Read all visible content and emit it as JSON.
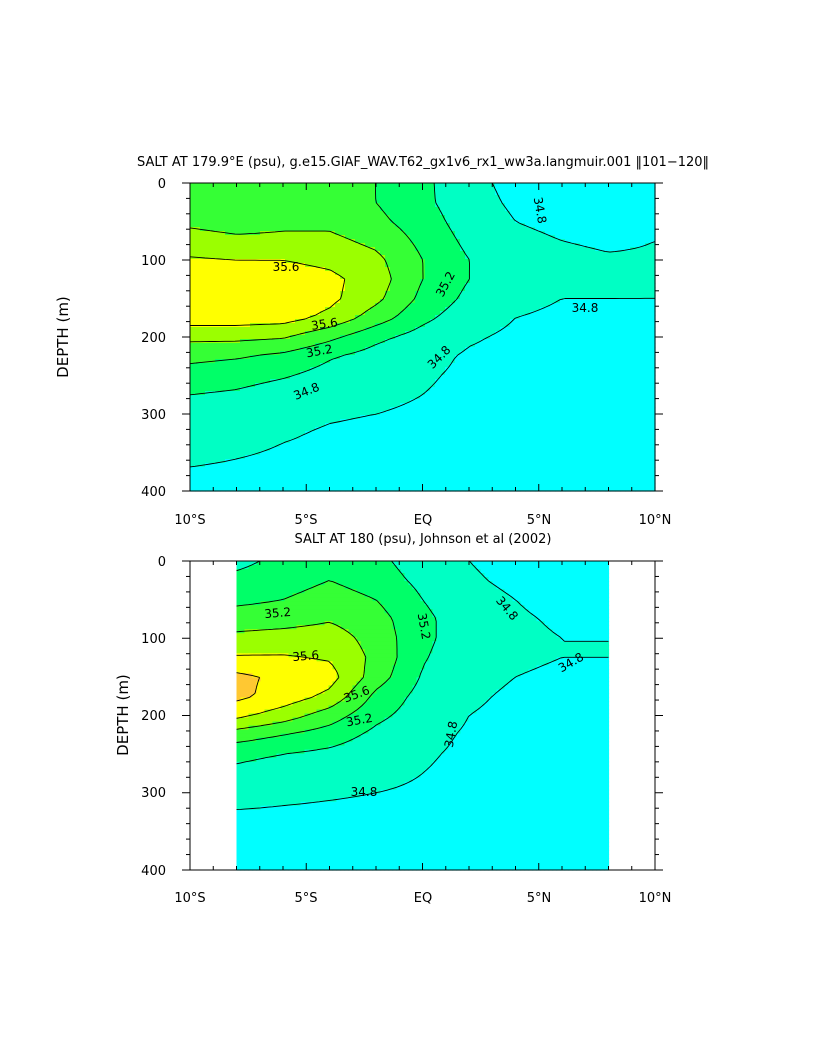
{
  "figure": {
    "colors": {
      "cyan": "#00FFFF",
      "aqua_green": "#00FFC4",
      "teal_green": "#00FF96",
      "green_mid": "#00FF68",
      "green": "#35FF35",
      "lime": "#9BFF00",
      "yellow": "#FFFF00",
      "orange": "#FFC832",
      "lines": "#000000",
      "background": "#FFFFFF"
    }
  },
  "chart_data": [
    {
      "type": "heatmap",
      "title": "SALT AT 179.9°E (psu), g.e15.GIAF_WAV.T62_gx1v6_rx1_ww3a.langmuir.001 ‖101−120‖",
      "xlabel": "",
      "ylabel": "DEPTH (m)",
      "xlim": [
        -10,
        10
      ],
      "ylim": [
        400,
        0
      ],
      "x_ticks": [
        -10,
        -5,
        0,
        5,
        10
      ],
      "x_tick_labels": [
        "10°S",
        "5°S",
        "EQ",
        "5°N",
        "10°N"
      ],
      "y_ticks": [
        0,
        100,
        200,
        300,
        400
      ],
      "y_tick_labels": [
        "0",
        "100",
        "200",
        "300",
        "400"
      ],
      "grid": false,
      "data_extent_lat": [
        -10,
        10
      ],
      "contour_labels": [
        "35.6",
        "35.6",
        "35.2",
        "35.2",
        "34.8",
        "34.8",
        "34.8",
        "34.8"
      ],
      "contour_levels": [
        34.6,
        34.8,
        35.0,
        35.2,
        35.4,
        35.6
      ],
      "salinity_field": {
        "lat": [
          -10,
          -8,
          -6,
          -4,
          -2,
          0,
          2,
          4,
          6,
          8,
          10
        ],
        "depth": [
          0,
          25,
          50,
          75,
          100,
          125,
          150,
          175,
          200,
          225,
          250,
          275,
          300,
          325,
          350,
          375,
          400
        ],
        "values": [
          [
            35.3,
            35.3,
            35.3,
            35.25,
            35.2,
            35.05,
            34.85,
            34.75,
            34.7,
            34.7,
            34.7
          ],
          [
            35.3,
            35.3,
            35.3,
            35.3,
            35.2,
            35.05,
            34.87,
            34.77,
            34.72,
            34.7,
            34.7
          ],
          [
            35.35,
            35.3,
            35.35,
            35.35,
            35.25,
            35.1,
            34.9,
            34.8,
            34.75,
            34.72,
            34.75
          ],
          [
            35.5,
            35.45,
            35.45,
            35.45,
            35.35,
            35.15,
            34.95,
            34.85,
            34.8,
            34.77,
            34.8
          ],
          [
            35.62,
            35.6,
            35.6,
            35.55,
            35.45,
            35.2,
            35.0,
            34.92,
            34.85,
            34.82,
            34.82
          ],
          [
            35.72,
            35.72,
            35.7,
            35.65,
            35.5,
            35.2,
            35.0,
            34.88,
            34.82,
            34.82,
            34.82
          ],
          [
            35.72,
            35.72,
            35.72,
            35.65,
            35.45,
            35.15,
            34.95,
            34.83,
            34.8,
            34.8,
            34.8
          ],
          [
            35.7,
            35.7,
            35.68,
            35.55,
            35.3,
            35.05,
            34.88,
            34.8,
            34.78,
            34.78,
            34.77
          ],
          [
            35.45,
            35.45,
            35.42,
            35.25,
            35.05,
            34.92,
            34.82,
            34.77,
            34.75,
            34.74,
            34.75
          ],
          [
            35.25,
            35.22,
            35.15,
            35.02,
            34.92,
            34.85,
            34.78,
            34.75,
            34.72,
            34.72,
            34.73
          ],
          [
            35.12,
            35.08,
            35.02,
            34.93,
            34.86,
            34.82,
            34.77,
            34.74,
            34.72,
            34.72,
            34.72
          ],
          [
            35.0,
            34.97,
            34.9,
            34.85,
            34.83,
            34.8,
            34.76,
            34.73,
            34.72,
            34.71,
            34.65
          ],
          [
            34.92,
            34.88,
            34.83,
            34.81,
            34.8,
            34.78,
            34.75,
            34.73,
            34.72,
            34.71,
            34.68
          ],
          [
            34.87,
            34.84,
            34.81,
            34.79,
            34.78,
            34.77,
            34.74,
            34.72,
            34.71,
            34.71,
            34.7
          ],
          [
            34.83,
            34.81,
            34.79,
            34.78,
            34.77,
            34.76,
            34.74,
            34.72,
            34.71,
            34.71,
            34.71
          ],
          [
            34.79,
            34.78,
            34.77,
            34.76,
            34.76,
            34.75,
            34.73,
            34.72,
            34.71,
            34.71,
            34.71
          ],
          [
            34.77,
            34.76,
            34.76,
            34.75,
            34.75,
            34.74,
            34.73,
            34.72,
            34.71,
            34.71,
            34.71
          ]
        ]
      }
    },
    {
      "type": "heatmap",
      "title": "SALT AT 180 (psu), Johnson et al (2002)",
      "xlabel": "",
      "ylabel": "DEPTH (m)",
      "xlim": [
        -10,
        10
      ],
      "ylim": [
        400,
        0
      ],
      "x_ticks": [
        -10,
        -5,
        0,
        5,
        10
      ],
      "x_tick_labels": [
        "10°S",
        "5°S",
        "EQ",
        "5°N",
        "10°N"
      ],
      "y_ticks": [
        0,
        100,
        200,
        300,
        400
      ],
      "y_tick_labels": [
        "0",
        "100",
        "200",
        "300",
        "400"
      ],
      "grid": false,
      "data_extent_lat": [
        -8,
        8
      ],
      "contour_labels": [
        "35.2",
        "35.6",
        "35.6",
        "35.2",
        "35.2",
        "34.8",
        "34.8",
        "34.8",
        "34.8"
      ],
      "contour_levels": [
        34.6,
        34.8,
        35.0,
        35.2,
        35.4,
        35.6,
        35.8
      ],
      "salinity_field": {
        "lat": [
          -8,
          -6,
          -4,
          -2,
          0,
          2,
          4,
          6,
          8
        ],
        "depth": [
          0,
          25,
          50,
          75,
          100,
          125,
          150,
          175,
          200,
          225,
          250,
          275,
          300,
          325,
          350,
          375,
          400
        ],
        "values": [
          [
            34.95,
            35.05,
            35.15,
            35.05,
            34.9,
            34.8,
            34.75,
            34.7,
            34.65
          ],
          [
            35.05,
            35.1,
            35.2,
            35.1,
            34.95,
            34.82,
            34.77,
            34.72,
            34.68
          ],
          [
            35.15,
            35.2,
            35.3,
            35.2,
            35.0,
            34.85,
            34.8,
            34.75,
            34.72
          ],
          [
            35.3,
            35.32,
            35.38,
            35.28,
            35.05,
            34.88,
            34.82,
            34.78,
            34.77
          ],
          [
            35.45,
            35.48,
            35.5,
            35.32,
            35.05,
            34.88,
            34.83,
            34.8,
            34.8
          ],
          [
            35.62,
            35.62,
            35.58,
            35.35,
            35.02,
            34.86,
            34.82,
            34.8,
            34.8
          ],
          [
            35.85,
            35.75,
            35.68,
            35.3,
            34.98,
            34.84,
            34.8,
            34.78,
            34.77
          ],
          [
            35.85,
            35.72,
            35.55,
            35.15,
            34.93,
            34.82,
            34.78,
            34.76,
            34.75
          ],
          [
            35.65,
            35.5,
            35.3,
            35.05,
            34.9,
            34.8,
            34.77,
            34.74,
            34.73
          ],
          [
            35.3,
            35.2,
            35.1,
            34.95,
            34.85,
            34.78,
            34.75,
            34.73,
            34.72
          ],
          [
            35.05,
            35.0,
            34.95,
            34.88,
            34.82,
            34.77,
            34.74,
            34.72,
            34.72
          ],
          [
            34.95,
            34.9,
            34.88,
            34.84,
            34.8,
            34.76,
            34.74,
            34.72,
            34.72
          ],
          [
            34.87,
            34.84,
            34.82,
            34.8,
            34.78,
            34.75,
            34.73,
            34.72,
            34.72
          ],
          [
            34.79,
            34.78,
            34.77,
            34.76,
            34.75,
            34.74,
            34.73,
            34.72,
            34.72
          ],
          [
            34.76,
            34.75,
            34.75,
            34.74,
            34.74,
            34.73,
            34.72,
            34.72,
            34.72
          ],
          [
            34.74,
            34.74,
            34.74,
            34.73,
            34.73,
            34.72,
            34.72,
            34.72,
            34.72
          ],
          [
            34.73,
            34.73,
            34.73,
            34.73,
            34.72,
            34.72,
            34.72,
            34.72,
            34.72
          ]
        ]
      }
    }
  ]
}
